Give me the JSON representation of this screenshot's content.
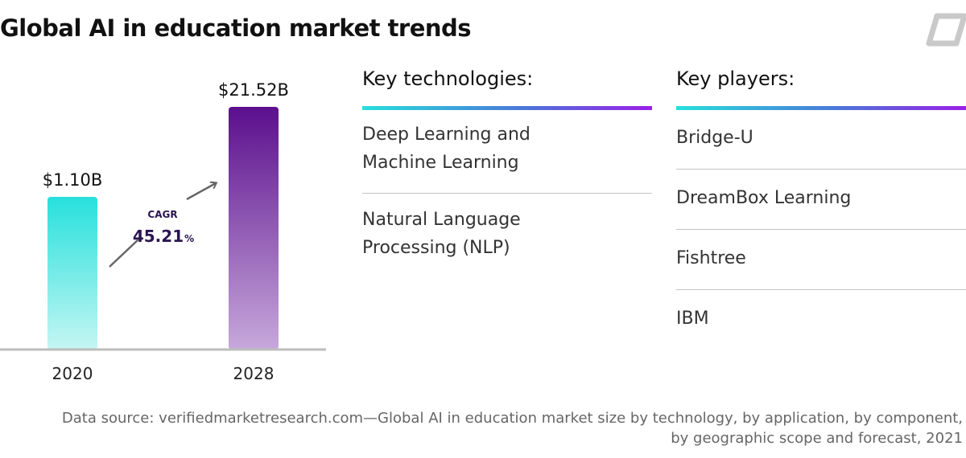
{
  "title": "Global AI in education market trends",
  "colors": {
    "bar_2020_top": "#27e0dc",
    "bar_2020_bottom": "#c4f6f3",
    "bar_2028_top": "#5b0f8d",
    "bar_2028_bottom": "#c7a8db",
    "accent_line_start": "#27e0dc",
    "accent_line_end": "#9b1fe8",
    "cagr_value": "#2a1450"
  },
  "icons": {
    "logo": "brand-logo-icon",
    "arrow": "diagonal-arrow-icon"
  },
  "chart_data": {
    "type": "bar",
    "categories": [
      "2020",
      "2028"
    ],
    "values": [
      1.1,
      21.52
    ],
    "value_labels": [
      "$1.10B",
      "$21.52B"
    ],
    "annotation": {
      "label": "CAGR",
      "value": "45.21",
      "unit": "%"
    }
  },
  "technologies": {
    "header": "Key technologies:",
    "items": [
      [
        "Deep Learning and",
        "Machine Learning"
      ],
      [
        "Natural Language",
        "Processing (NLP)"
      ]
    ]
  },
  "players": {
    "header": "Key players:",
    "items": [
      "Bridge-U",
      "DreamBox Learning",
      "Fishtree",
      "IBM"
    ]
  },
  "footer": {
    "line1": "Data source: verifiedmarketresearch.com—Global AI in education market size by technology, by application, by component,",
    "line2": "by geographic scope and forecast, 2021"
  }
}
